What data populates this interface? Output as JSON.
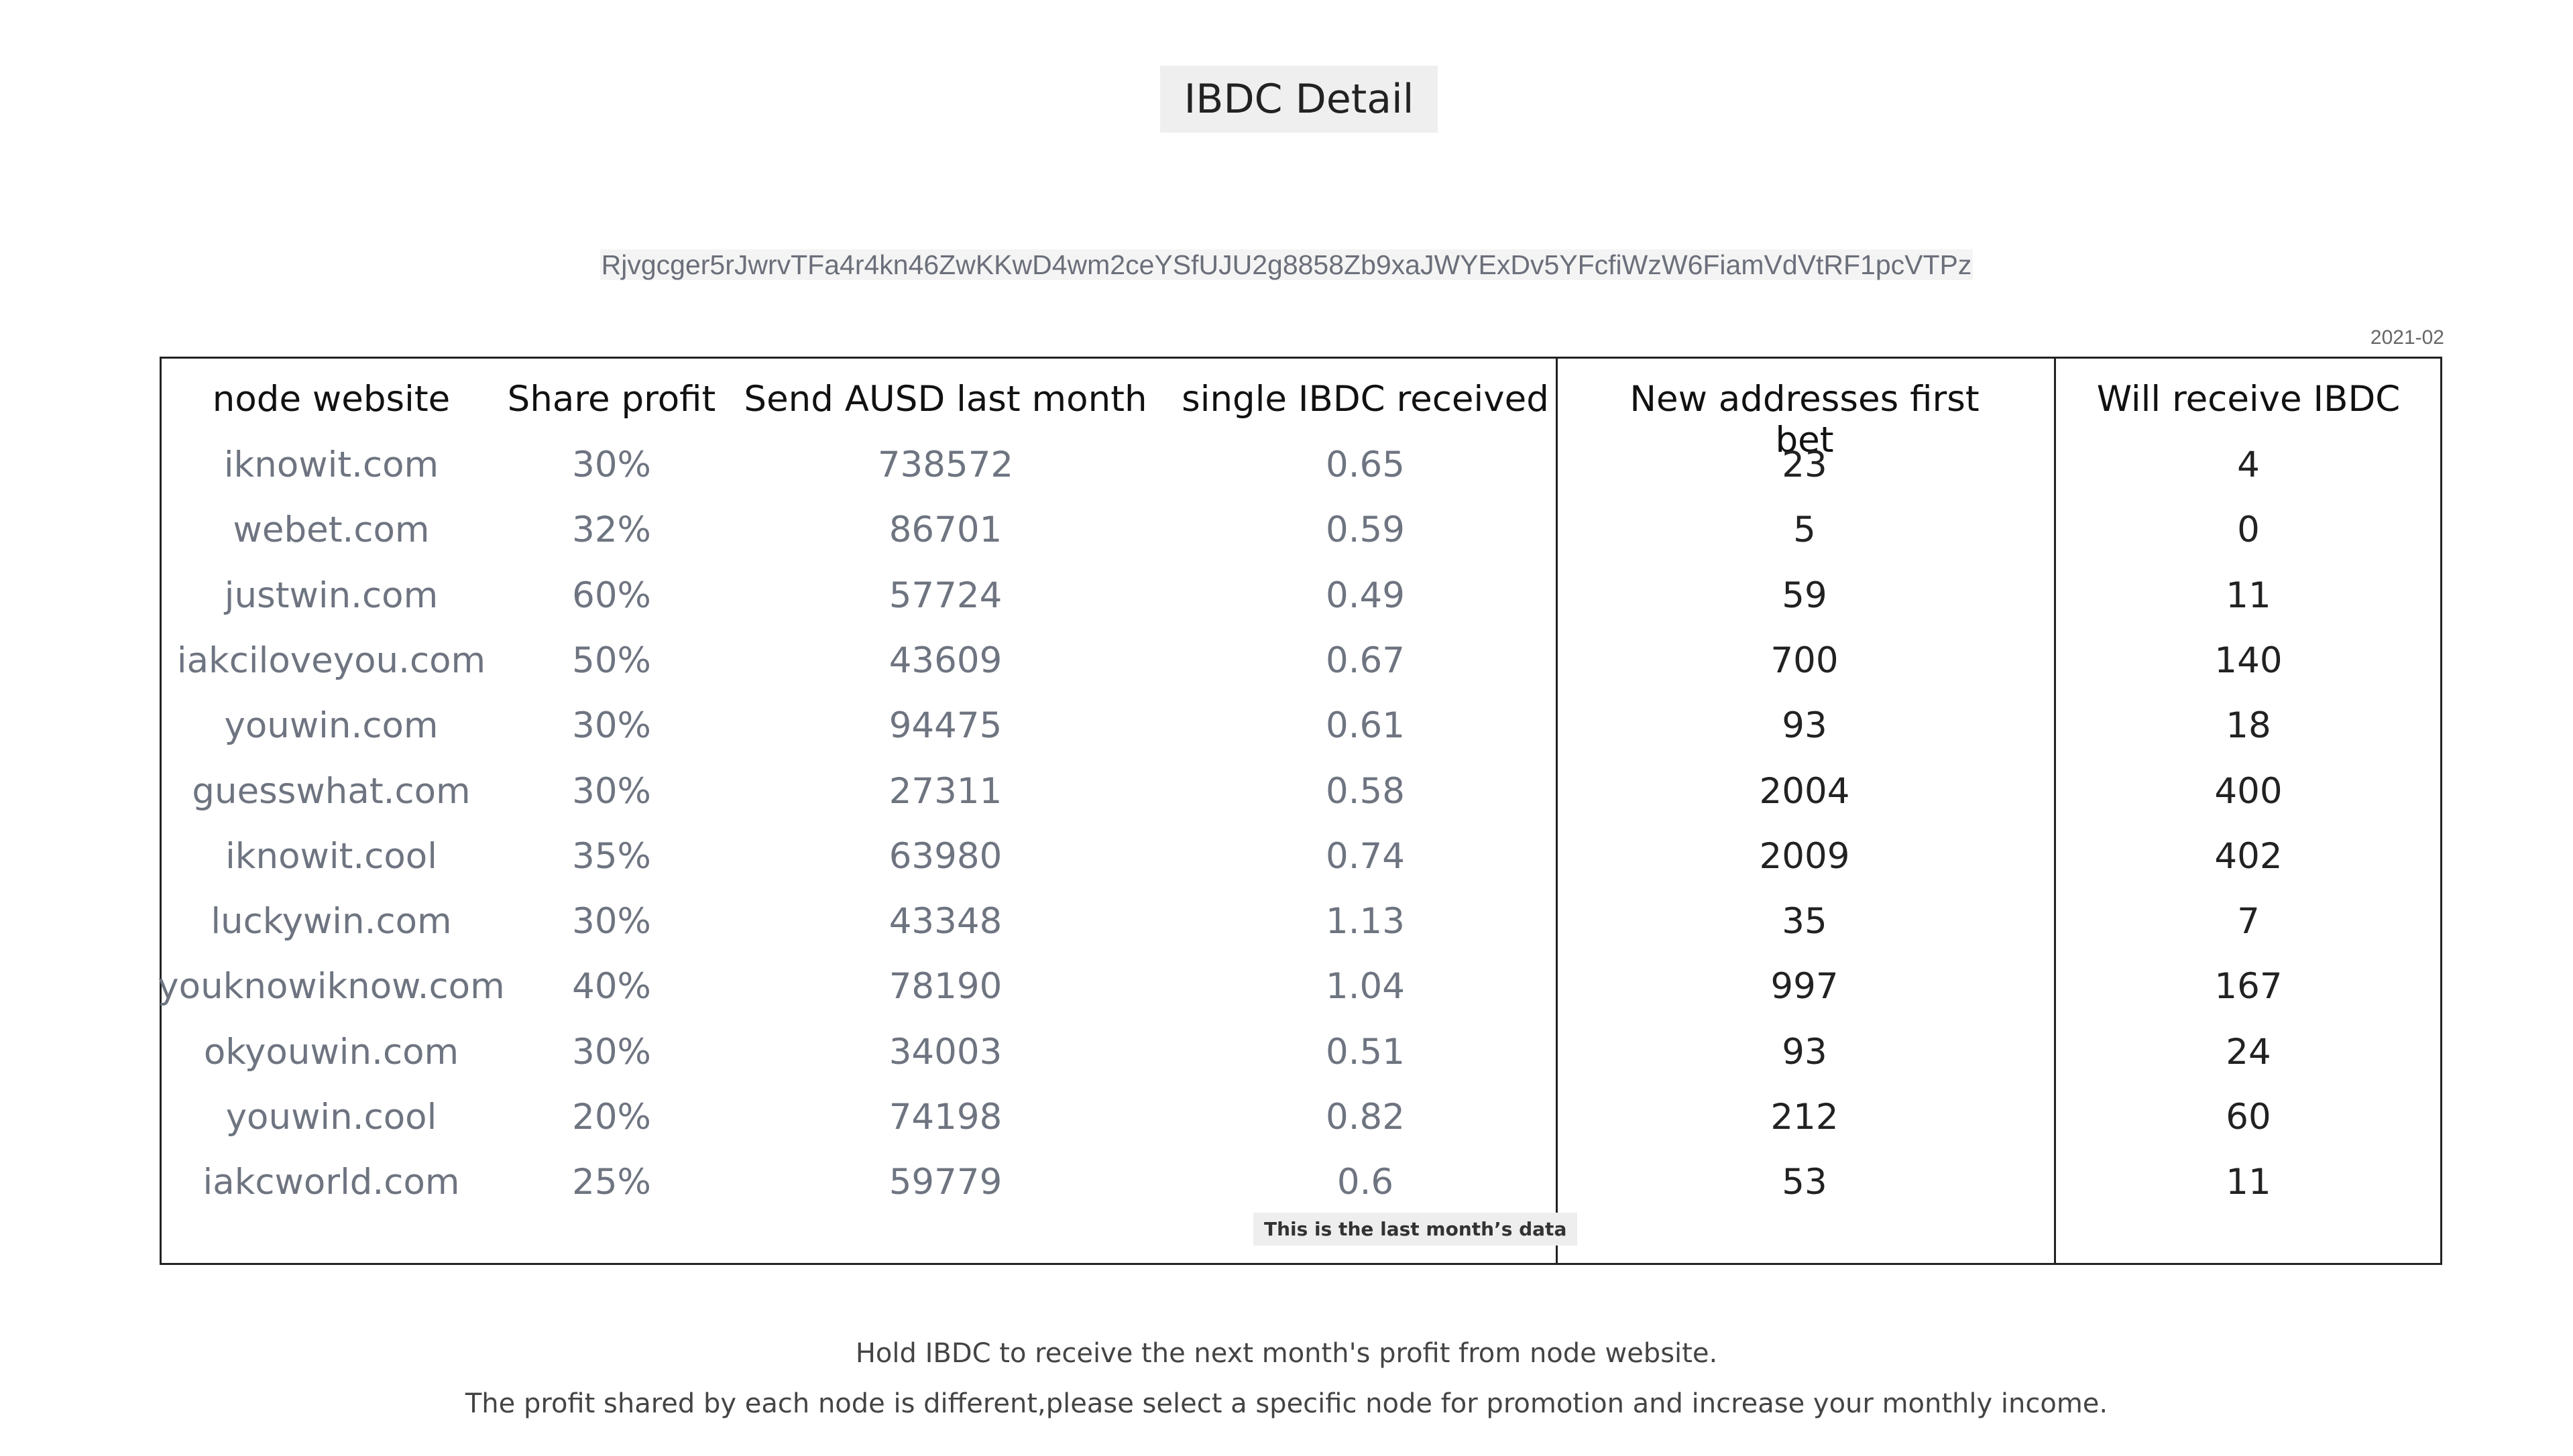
{
  "page": {
    "title": "IBDC Detail",
    "address": "Rjvgcger5rJwrvTFa4r4kn46ZwKKwD4wm2ceYSfUJU2g8858Zb9xaJWYExDv5YFcfiWzW6FiamVdVtRF1pcVTPz",
    "date": "2021-02"
  },
  "table": {
    "headers": [
      "node website",
      "Share profit",
      "Send AUSD last month",
      "single IBDC received",
      "New addresses first bet",
      "Will receive IBDC"
    ],
    "rows": [
      [
        "iknowit.com",
        "30%",
        "738572",
        "0.65",
        "23",
        "4"
      ],
      [
        "webet.com",
        "32%",
        "86701",
        "0.59",
        "5",
        "0"
      ],
      [
        "justwin.com",
        "60%",
        "57724",
        "0.49",
        "59",
        "11"
      ],
      [
        "iakciloveyou.com",
        "50%",
        "43609",
        "0.67",
        "700",
        "140"
      ],
      [
        "youwin.com",
        "30%",
        "94475",
        "0.61",
        "93",
        "18"
      ],
      [
        "guesswhat.com",
        "30%",
        "27311",
        "0.58",
        "2004",
        "400"
      ],
      [
        "iknowit.cool",
        "35%",
        "63980",
        "0.74",
        "2009",
        "402"
      ],
      [
        "luckywin.com",
        "30%",
        "43348",
        "1.13",
        "35",
        "7"
      ],
      [
        "youknowiknow.com",
        "40%",
        "78190",
        "1.04",
        "997",
        "167"
      ],
      [
        "okyouwin.com",
        "30%",
        "34003",
        "0.51",
        "93",
        "24"
      ],
      [
        "youwin.cool",
        "20%",
        "74198",
        "0.82",
        "212",
        "60"
      ],
      [
        "iakcworld.com",
        "25%",
        "59779",
        "0.6",
        "53",
        "11"
      ]
    ],
    "note": "This is the last month’s data"
  },
  "footer": {
    "line1": "Hold IBDC to receive the next month's profit from node website.",
    "line2": "The profit shared by each node is different,please select a specific node for promotion and increase your monthly income."
  }
}
